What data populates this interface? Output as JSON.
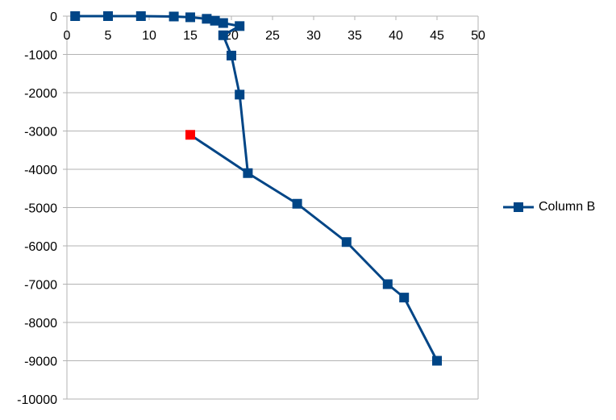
{
  "chart_data": {
    "type": "scatter",
    "series": [
      {
        "name": "Column B",
        "color": "#004586",
        "marker": "square",
        "points": [
          {
            "x": 1,
            "y": 0
          },
          {
            "x": 5,
            "y": 0
          },
          {
            "x": 9,
            "y": 0
          },
          {
            "x": 13,
            "y": -10
          },
          {
            "x": 15,
            "y": -30
          },
          {
            "x": 17,
            "y": -70
          },
          {
            "x": 18,
            "y": -120
          },
          {
            "x": 19,
            "y": -180
          },
          {
            "x": 21,
            "y": -260
          },
          {
            "x": 19,
            "y": -500
          },
          {
            "x": 20,
            "y": -1030
          },
          {
            "x": 21,
            "y": -2050
          },
          {
            "x": 22,
            "y": -4100
          },
          {
            "x": 28,
            "y": -4900
          },
          {
            "x": 34,
            "y": -5900
          },
          {
            "x": 39,
            "y": -7000
          },
          {
            "x": 41,
            "y": -7350
          },
          {
            "x": 45,
            "y": -9000
          }
        ]
      }
    ],
    "highlighted_point": {
      "x": 15,
      "y": -3100,
      "color": "#ff0000"
    },
    "xlim": [
      0,
      50
    ],
    "ylim": [
      -10000,
      0
    ],
    "x_ticks": [
      "0",
      "5",
      "10",
      "15",
      "20",
      "25",
      "30",
      "35",
      "40",
      "45",
      "50"
    ],
    "y_ticks": [
      "0",
      "-1000",
      "-2000",
      "-3000",
      "-4000",
      "-5000",
      "-6000",
      "-7000",
      "-8000",
      "-9000",
      "-10000"
    ],
    "x_tick_values": [
      0,
      5,
      10,
      15,
      20,
      25,
      30,
      35,
      40,
      45,
      50
    ],
    "y_tick_values": [
      0,
      -1000,
      -2000,
      -3000,
      -4000,
      -5000,
      -6000,
      -7000,
      -8000,
      -9000,
      -10000
    ],
    "grid": true,
    "grid_color": "#b3b3b3",
    "legend_position": "right",
    "legend": [
      "Column B"
    ]
  }
}
